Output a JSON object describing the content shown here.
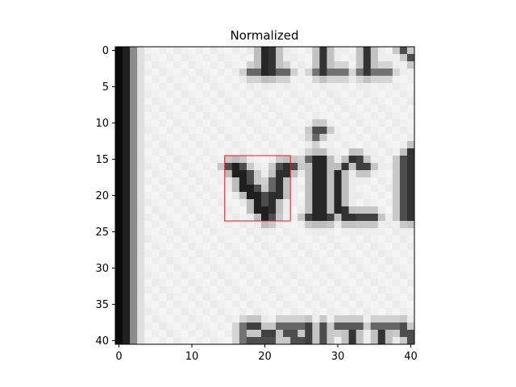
{
  "chart_data": {
    "type": "heatmap",
    "title": "Normalized",
    "xlabel": "",
    "ylabel": "",
    "width": 41,
    "height": 41,
    "colormap": "gray",
    "x_ticks": [
      "0",
      "10",
      "20",
      "30",
      "40"
    ],
    "y_ticks": [
      "0",
      "5",
      "10",
      "15",
      "20",
      "25",
      "30",
      "35",
      "40"
    ],
    "bounding_box": {
      "x0": 15,
      "y0": 15,
      "x1": 24,
      "y1": 24,
      "color": "#e31a1c"
    },
    "grid": false,
    "legend": "none"
  }
}
